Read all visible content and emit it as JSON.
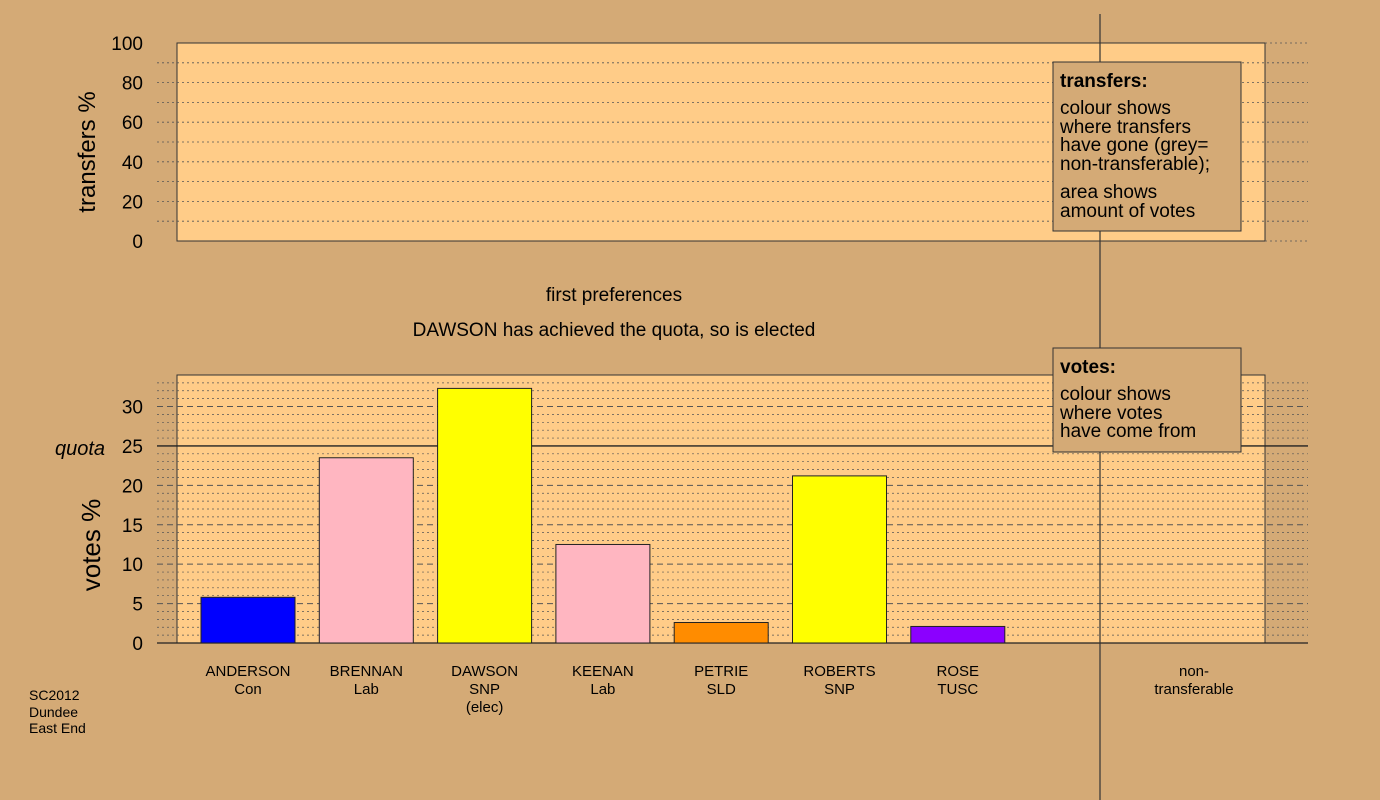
{
  "chart_data": [
    {
      "type": "bar",
      "title": "",
      "ylabel": "transfers %",
      "ylim": [
        0,
        100
      ],
      "yticks": [
        0,
        20,
        40,
        60,
        80,
        100
      ],
      "categories": [],
      "values": []
    },
    {
      "type": "bar",
      "ylabel": "votes %",
      "ylim": [
        0,
        34
      ],
      "yticks": [
        0,
        5,
        10,
        15,
        20,
        25,
        30
      ],
      "quota": 25,
      "quota_label": "quota",
      "categories": [
        {
          "name": "ANDERSON",
          "party": "Con",
          "note": ""
        },
        {
          "name": "BRENNAN",
          "party": "Lab",
          "note": ""
        },
        {
          "name": "DAWSON",
          "party": "SNP",
          "note": "(elec)"
        },
        {
          "name": "KEENAN",
          "party": "Lab",
          "note": ""
        },
        {
          "name": "PETRIE",
          "party": "SLD",
          "note": ""
        },
        {
          "name": "ROBERTS",
          "party": "SNP",
          "note": ""
        },
        {
          "name": "ROSE",
          "party": "TUSC",
          "note": ""
        }
      ],
      "values": [
        5.8,
        23.5,
        32.3,
        12.5,
        2.6,
        21.2,
        2.1
      ],
      "colors": [
        "#0000ff",
        "#ffb6c1",
        "#ffff00",
        "#ffb6c1",
        "#ff8c00",
        "#ffff00",
        "#8b00ff"
      ],
      "nontransferable_label_line1": "non-",
      "nontransferable_label_line2": "transferable"
    }
  ],
  "stage": {
    "title": "first preferences",
    "subtitle": "DAWSON has achieved the quota, so is elected"
  },
  "legend_transfers": {
    "heading": "transfers:",
    "lines1": [
      "colour shows",
      "where transfers",
      "have gone (grey=",
      "non-transferable);"
    ],
    "lines2": [
      "area shows",
      "amount of votes"
    ]
  },
  "legend_votes": {
    "heading": "votes:",
    "lines": [
      "colour shows",
      "where votes",
      "have come from"
    ]
  },
  "footer": {
    "lines": [
      "SC2012",
      "Dundee",
      "East End"
    ]
  },
  "colors": {
    "background": "#d4aa76",
    "plot_fill": "#ffcc88"
  }
}
